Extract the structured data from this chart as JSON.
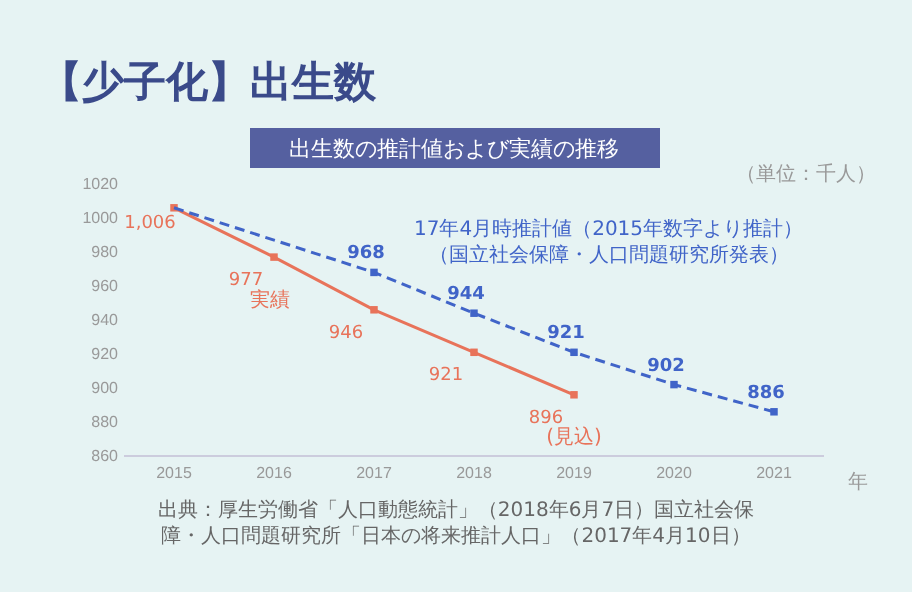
{
  "chart_data": {
    "type": "line",
    "title": "【少子化】出生数",
    "subtitle": "出生数の推計値および実績の推移",
    "xlabel": "年",
    "xlim": [
      2014.5,
      2021.5
    ],
    "xticks": [
      2015,
      2016,
      2017,
      2018,
      2019,
      2020,
      2021
    ],
    "ylim": [
      860,
      1020
    ],
    "yticks": [
      860,
      880,
      900,
      920,
      940,
      960,
      980,
      1000,
      1020
    ],
    "grid": false,
    "marker": "square",
    "series": [
      {
        "name": "実績",
        "color": "#e8735a",
        "line_style": "solid",
        "x": [
          2015,
          2016,
          2017,
          2018,
          2019
        ],
        "values": [
          1006,
          977,
          946,
          921,
          896
        ],
        "value_labels": [
          "1,006",
          "977",
          "946",
          "921",
          "896"
        ]
      },
      {
        "name": "17年4月時推計値（2015年数字より推計）",
        "color": "#4064c8",
        "line_style": "dashed",
        "x": [
          2015,
          2017,
          2018,
          2019,
          2020,
          2021
        ],
        "values": [
          1006,
          968,
          944,
          921,
          902,
          886
        ],
        "value_labels": [
          null,
          "968",
          "944",
          "921",
          "902",
          "886"
        ]
      }
    ],
    "annotations": [
      "（単位：千人）",
      "（国立社会保障・人口問題研究所発表）",
      {
        "text": "(見込)",
        "x": 2019,
        "y": 896
      },
      "出典：厚生労働省「人口動態統計」（2018年6月7日）国立社会保障・人口問題研究所「日本の将来推計人口」（2017年4月10日）"
    ]
  }
}
